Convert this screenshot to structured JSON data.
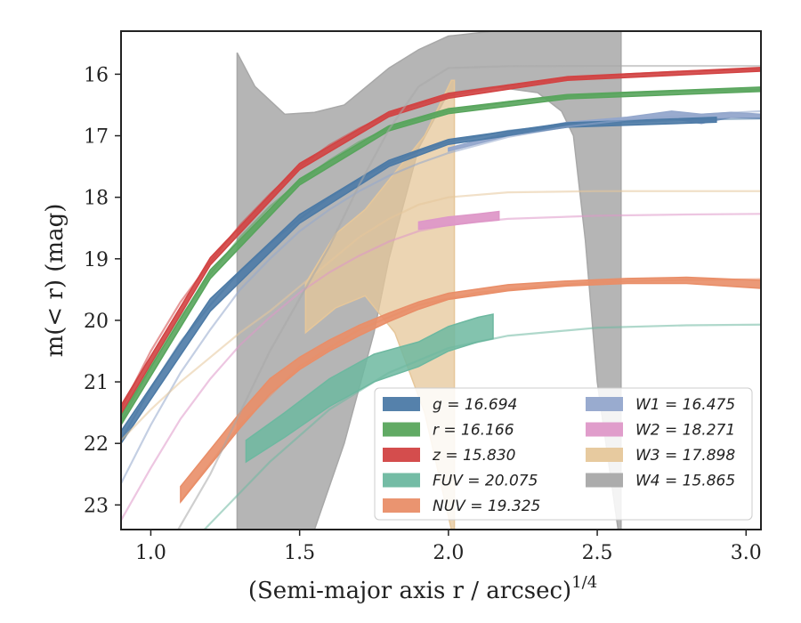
{
  "chart_data": {
    "type": "area",
    "xlabel": "(Semi-major axis r / arcsec)",
    "xlabel_sup": "1/4",
    "ylabel": "m(< r) (mag)",
    "xlim": [
      0.9,
      3.05
    ],
    "ylim": [
      23.4,
      15.3
    ],
    "y_inverted": true,
    "grid": false,
    "legend_location": "bottom-right",
    "xticks": [
      "1.0",
      "1.5",
      "2.0",
      "2.5",
      "3.0"
    ],
    "xtick_values": [
      1.0,
      1.5,
      2.0,
      2.5,
      3.0
    ],
    "yticks": [
      "16",
      "17",
      "18",
      "19",
      "20",
      "21",
      "22",
      "23"
    ],
    "ytick_values": [
      16,
      17,
      18,
      19,
      20,
      21,
      22,
      23
    ],
    "series": [
      {
        "name": "g = 16.694",
        "color": "#4c7aa6",
        "opacity": 0.9,
        "model": [
          [
            0.9,
            21.95
          ],
          [
            1.0,
            21.1
          ],
          [
            1.1,
            20.35
          ],
          [
            1.2,
            19.75
          ],
          [
            1.3,
            19.2
          ],
          [
            1.4,
            18.75
          ],
          [
            1.5,
            18.35
          ],
          [
            1.6,
            18.0
          ],
          [
            1.7,
            17.7
          ],
          [
            1.8,
            17.45
          ],
          [
            1.9,
            17.25
          ],
          [
            2.0,
            17.1
          ],
          [
            2.2,
            16.92
          ],
          [
            2.4,
            16.82
          ],
          [
            2.6,
            16.78
          ],
          [
            2.8,
            16.74
          ],
          [
            3.05,
            16.72
          ]
        ],
        "band": [
          [
            0.9,
            21.8,
            22.0
          ],
          [
            1.2,
            19.65,
            19.85
          ],
          [
            1.5,
            18.28,
            18.42
          ],
          [
            1.8,
            17.4,
            17.5
          ],
          [
            2.0,
            17.06,
            17.14
          ],
          [
            2.4,
            16.79,
            16.86
          ],
          [
            2.9,
            16.7,
            16.78
          ]
        ]
      },
      {
        "name": "r = 16.166",
        "color": "#58a55c",
        "opacity": 0.9,
        "model": [
          [
            0.9,
            21.65
          ],
          [
            1.0,
            20.75
          ],
          [
            1.1,
            19.95
          ],
          [
            1.2,
            19.25
          ],
          [
            1.3,
            18.65
          ],
          [
            1.4,
            18.15
          ],
          [
            1.5,
            17.75
          ],
          [
            1.6,
            17.4
          ],
          [
            1.7,
            17.1
          ],
          [
            1.8,
            16.88
          ],
          [
            1.9,
            16.72
          ],
          [
            2.0,
            16.6
          ],
          [
            2.2,
            16.45
          ],
          [
            2.4,
            16.36
          ],
          [
            2.6,
            16.3
          ],
          [
            2.8,
            16.27
          ],
          [
            3.05,
            16.25
          ]
        ],
        "band": [
          [
            0.9,
            21.55,
            21.7
          ],
          [
            1.2,
            19.18,
            19.32
          ],
          [
            1.5,
            17.7,
            17.8
          ],
          [
            1.8,
            16.84,
            16.92
          ],
          [
            2.0,
            16.56,
            16.64
          ],
          [
            2.4,
            16.33,
            16.4
          ],
          [
            3.05,
            16.21,
            16.28
          ]
        ]
      },
      {
        "name": "z = 15.830",
        "color": "#d24343",
        "opacity": 0.9,
        "model": [
          [
            0.9,
            21.45
          ],
          [
            1.0,
            20.5
          ],
          [
            1.1,
            19.7
          ],
          [
            1.2,
            19.05
          ],
          [
            1.3,
            18.45
          ],
          [
            1.4,
            17.95
          ],
          [
            1.5,
            17.5
          ],
          [
            1.6,
            17.15
          ],
          [
            1.7,
            16.88
          ],
          [
            1.8,
            16.65
          ],
          [
            1.9,
            16.48
          ],
          [
            2.0,
            16.35
          ],
          [
            2.2,
            16.18
          ],
          [
            2.4,
            16.07
          ],
          [
            2.6,
            16.0
          ],
          [
            2.8,
            15.95
          ],
          [
            3.05,
            15.92
          ]
        ],
        "band": [
          [
            0.9,
            21.38,
            21.52
          ],
          [
            1.2,
            18.98,
            19.1
          ],
          [
            1.5,
            17.45,
            17.55
          ],
          [
            1.8,
            16.61,
            16.69
          ],
          [
            2.0,
            16.31,
            16.39
          ],
          [
            2.4,
            16.04,
            16.1
          ],
          [
            3.05,
            15.89,
            15.95
          ]
        ]
      },
      {
        "name": "FUV = 20.075",
        "color": "#6db8a0",
        "opacity": 0.85,
        "model": [
          [
            0.9,
            24.8
          ],
          [
            1.2,
            23.3
          ],
          [
            1.4,
            22.3
          ],
          [
            1.6,
            21.45
          ],
          [
            1.8,
            20.85
          ],
          [
            2.0,
            20.45
          ],
          [
            2.2,
            20.25
          ],
          [
            2.5,
            20.12
          ],
          [
            2.8,
            20.08
          ],
          [
            3.05,
            20.07
          ]
        ],
        "band": [
          [
            1.32,
            22.3,
            21.95
          ],
          [
            1.45,
            21.9,
            21.5
          ],
          [
            1.6,
            21.4,
            20.95
          ],
          [
            1.75,
            21.0,
            20.55
          ],
          [
            1.9,
            20.75,
            20.35
          ],
          [
            2.0,
            20.5,
            20.1
          ],
          [
            2.1,
            20.35,
            19.95
          ],
          [
            2.15,
            20.3,
            19.9
          ]
        ]
      },
      {
        "name": "NUV = 19.325",
        "color": "#e98e68",
        "opacity": 0.9,
        "model": [
          [
            1.1,
            22.95
          ],
          [
            1.3,
            21.7
          ],
          [
            1.5,
            20.75
          ],
          [
            1.7,
            20.15
          ],
          [
            1.9,
            19.75
          ],
          [
            2.1,
            19.55
          ],
          [
            2.3,
            19.45
          ],
          [
            2.5,
            19.38
          ],
          [
            2.7,
            19.35
          ],
          [
            2.9,
            19.34
          ],
          [
            3.05,
            19.33
          ]
        ],
        "band": [
          [
            1.1,
            22.95,
            22.7
          ],
          [
            1.2,
            22.35,
            22.1
          ],
          [
            1.3,
            21.75,
            21.5
          ],
          [
            1.4,
            21.2,
            20.95
          ],
          [
            1.5,
            20.8,
            20.6
          ],
          [
            1.6,
            20.5,
            20.32
          ],
          [
            1.7,
            20.25,
            20.08
          ],
          [
            1.8,
            20.02,
            19.88
          ],
          [
            1.9,
            19.82,
            19.7
          ],
          [
            2.0,
            19.66,
            19.56
          ],
          [
            2.2,
            19.52,
            19.42
          ],
          [
            2.4,
            19.44,
            19.36
          ],
          [
            2.6,
            19.4,
            19.32
          ],
          [
            2.8,
            19.4,
            19.3
          ],
          [
            3.05,
            19.48,
            19.35
          ]
        ]
      },
      {
        "name": "W1 = 16.475",
        "color": "#94a7cc",
        "opacity": 0.95,
        "model": [
          [
            0.9,
            22.65
          ],
          [
            1.0,
            21.7
          ],
          [
            1.1,
            20.85
          ],
          [
            1.2,
            20.15
          ],
          [
            1.3,
            19.5
          ],
          [
            1.4,
            19.0
          ],
          [
            1.5,
            18.55
          ],
          [
            1.6,
            18.2
          ],
          [
            1.7,
            17.9
          ],
          [
            1.8,
            17.65
          ],
          [
            1.9,
            17.45
          ],
          [
            2.0,
            17.28
          ],
          [
            2.2,
            17.02
          ],
          [
            2.4,
            16.85
          ],
          [
            2.6,
            16.74
          ],
          [
            2.8,
            16.67
          ],
          [
            3.05,
            16.6
          ]
        ],
        "band": [
          [
            2.0,
            17.25,
            17.2
          ],
          [
            2.2,
            17.0,
            16.95
          ],
          [
            2.4,
            16.85,
            16.78
          ],
          [
            2.6,
            16.76,
            16.7
          ],
          [
            2.75,
            16.72,
            16.6
          ],
          [
            2.85,
            16.8,
            16.65
          ],
          [
            2.95,
            16.7,
            16.62
          ],
          [
            3.05,
            16.72,
            16.65
          ]
        ]
      },
      {
        "name": "W2 = 18.271",
        "color": "#de98c8",
        "opacity": 0.95,
        "model": [
          [
            0.9,
            23.25
          ],
          [
            1.0,
            22.4
          ],
          [
            1.1,
            21.6
          ],
          [
            1.2,
            20.95
          ],
          [
            1.3,
            20.4
          ],
          [
            1.4,
            19.95
          ],
          [
            1.5,
            19.55
          ],
          [
            1.6,
            19.22
          ],
          [
            1.7,
            18.95
          ],
          [
            1.8,
            18.72
          ],
          [
            1.9,
            18.55
          ],
          [
            2.0,
            18.45
          ],
          [
            2.2,
            18.35
          ],
          [
            2.5,
            18.3
          ],
          [
            2.8,
            18.28
          ],
          [
            3.05,
            18.27
          ]
        ],
        "band": [
          [
            1.9,
            18.52,
            18.4
          ],
          [
            2.0,
            18.46,
            18.32
          ],
          [
            2.1,
            18.4,
            18.27
          ],
          [
            2.17,
            18.37,
            18.23
          ]
        ]
      },
      {
        "name": "W3 = 17.898",
        "color": "#e6c79a",
        "opacity": 0.75,
        "model": [
          [
            0.9,
            21.95
          ],
          [
            1.0,
            21.45
          ],
          [
            1.1,
            21.0
          ],
          [
            1.2,
            20.6
          ],
          [
            1.3,
            20.2
          ],
          [
            1.4,
            19.85
          ],
          [
            1.5,
            19.45
          ],
          [
            1.6,
            19.05
          ],
          [
            1.7,
            18.65
          ],
          [
            1.8,
            18.35
          ],
          [
            1.9,
            18.12
          ],
          [
            2.0,
            18.0
          ],
          [
            2.2,
            17.92
          ],
          [
            2.5,
            17.9
          ],
          [
            3.05,
            17.9
          ]
        ],
        "band": [
          [
            1.52,
            20.2,
            19.4
          ],
          [
            1.62,
            19.8,
            18.6
          ],
          [
            1.72,
            19.6,
            18.2
          ],
          [
            1.82,
            20.2,
            17.6
          ],
          [
            1.92,
            21.5,
            17.0
          ],
          [
            2.01,
            23.4,
            16.1
          ],
          [
            2.02,
            23.4,
            16.1
          ]
        ]
      },
      {
        "name": "W4 = 15.865",
        "color": "#a8a8a8",
        "opacity": 0.85,
        "model": [
          [
            0.9,
            25.0
          ],
          [
            1.2,
            22.5
          ],
          [
            1.4,
            20.5
          ],
          [
            1.6,
            18.8
          ],
          [
            1.7,
            17.8
          ],
          [
            1.8,
            16.9
          ],
          [
            1.9,
            16.2
          ],
          [
            2.0,
            15.9
          ],
          [
            2.2,
            15.87
          ],
          [
            2.5,
            15.865
          ],
          [
            3.05,
            15.865
          ]
        ],
        "band": [
          [
            1.29,
            23.4,
            15.65
          ],
          [
            1.35,
            23.4,
            16.2
          ],
          [
            1.45,
            23.4,
            16.65
          ],
          [
            1.55,
            23.4,
            16.62
          ],
          [
            1.65,
            22.0,
            16.5
          ],
          [
            1.75,
            20.2,
            16.1
          ],
          [
            1.8,
            19.0,
            15.9
          ],
          [
            1.9,
            17.2,
            15.6
          ],
          [
            2.0,
            16.3,
            15.38
          ],
          [
            2.15,
            16.2,
            15.3
          ],
          [
            2.3,
            16.3,
            15.3
          ],
          [
            2.38,
            16.6,
            15.3
          ],
          [
            2.42,
            17.0,
            15.3
          ],
          [
            2.46,
            18.7,
            15.3
          ],
          [
            2.5,
            21.0,
            15.3
          ],
          [
            2.57,
            23.4,
            15.3
          ],
          [
            2.58,
            23.4,
            15.3
          ]
        ]
      }
    ]
  }
}
